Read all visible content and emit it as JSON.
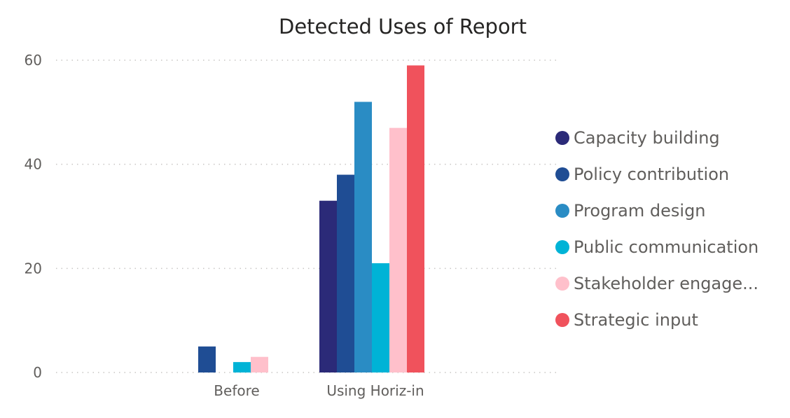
{
  "chart_data": {
    "type": "bar",
    "title": "Detected Uses of Report",
    "categories": [
      "Before",
      "Using Horiz-in"
    ],
    "series": [
      {
        "name": "Capacity building",
        "color": "#2b2a78",
        "values": [
          0,
          33
        ]
      },
      {
        "name": "Policy contribution",
        "color": "#1f4d94",
        "values": [
          5,
          38
        ]
      },
      {
        "name": "Program design",
        "color": "#2a8cc4",
        "values": [
          0,
          52
        ]
      },
      {
        "name": "Public communication",
        "color": "#00b3d6",
        "values": [
          2,
          21
        ]
      },
      {
        "name": "Stakeholder engage...",
        "color": "#ffc0cb",
        "values": [
          3,
          47
        ]
      },
      {
        "name": "Strategic input",
        "color": "#f0525c",
        "values": [
          0,
          59
        ]
      }
    ],
    "ylim": [
      0,
      60
    ],
    "yticks": [
      0,
      20,
      40,
      60
    ],
    "grid": true,
    "legend_position": "right"
  }
}
